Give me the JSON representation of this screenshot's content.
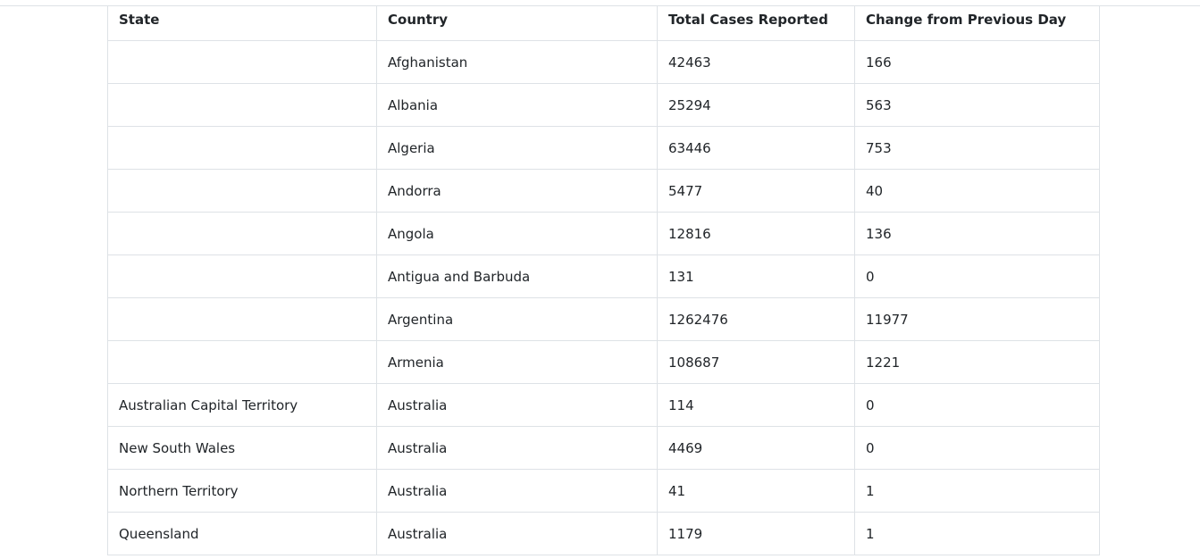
{
  "table": {
    "headers": {
      "state": "State",
      "country": "Country",
      "total_cases": "Total Cases Reported",
      "change": "Change from Previous Day"
    },
    "rows": [
      {
        "state": "",
        "country": "Afghanistan",
        "total": "42463",
        "change": "166"
      },
      {
        "state": "",
        "country": "Albania",
        "total": "25294",
        "change": "563"
      },
      {
        "state": "",
        "country": "Algeria",
        "total": "63446",
        "change": "753"
      },
      {
        "state": "",
        "country": "Andorra",
        "total": "5477",
        "change": "40"
      },
      {
        "state": "",
        "country": "Angola",
        "total": "12816",
        "change": "136"
      },
      {
        "state": "",
        "country": "Antigua and Barbuda",
        "total": "131",
        "change": "0"
      },
      {
        "state": "",
        "country": "Argentina",
        "total": "1262476",
        "change": "11977"
      },
      {
        "state": "",
        "country": "Armenia",
        "total": "108687",
        "change": "1221"
      },
      {
        "state": "Australian Capital Territory",
        "country": "Australia",
        "total": "114",
        "change": "0"
      },
      {
        "state": "New South Wales",
        "country": "Australia",
        "total": "4469",
        "change": "0"
      },
      {
        "state": "Northern Territory",
        "country": "Australia",
        "total": "41",
        "change": "1"
      },
      {
        "state": "Queensland",
        "country": "Australia",
        "total": "1179",
        "change": "1"
      }
    ]
  }
}
